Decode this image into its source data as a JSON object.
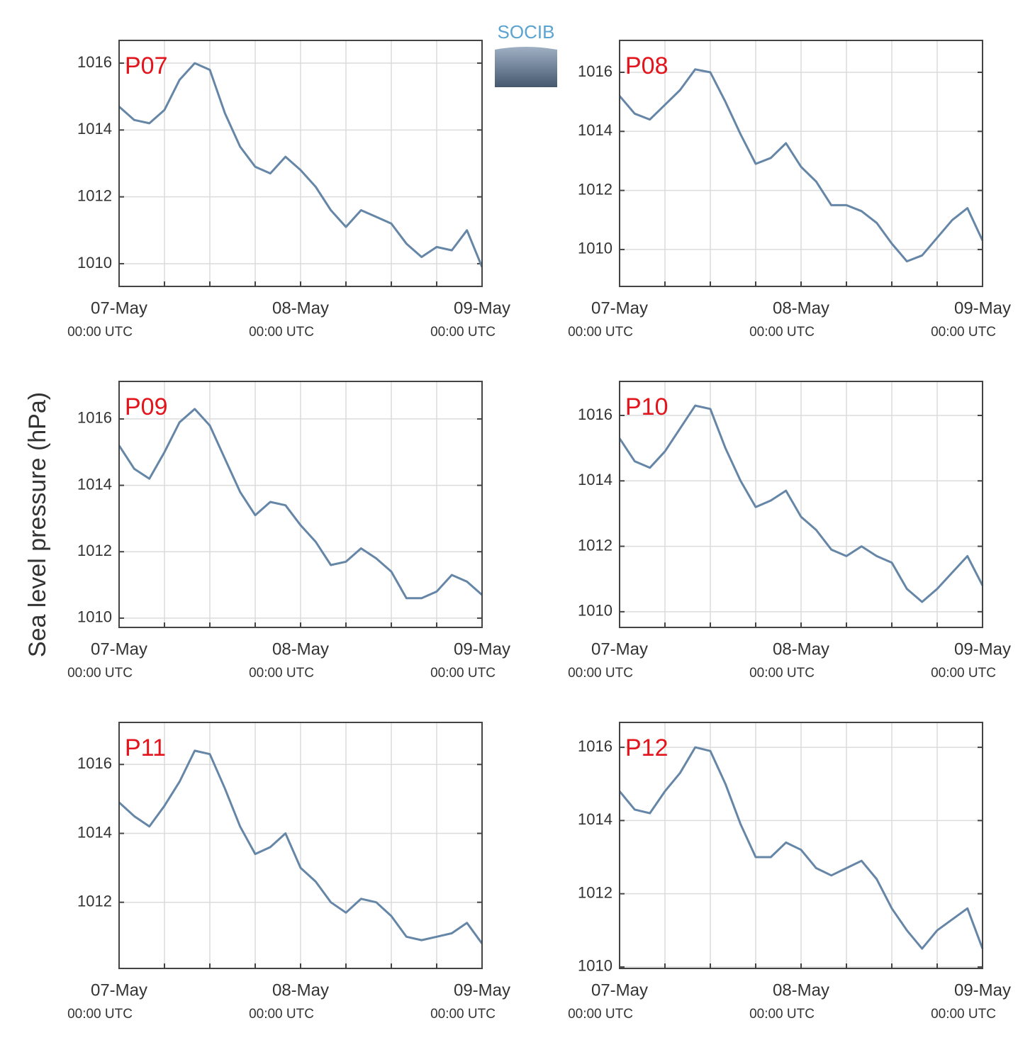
{
  "logo_text": "SOCIB",
  "ylabel": "Sea level pressure (hPa)",
  "chart_data": [
    {
      "type": "line",
      "title": "P07",
      "x": [
        0,
        2,
        4,
        6,
        8,
        10,
        12,
        14,
        16,
        18,
        20,
        22,
        24,
        26,
        28,
        30,
        32,
        34,
        36,
        38,
        40,
        42,
        44,
        46,
        48
      ],
      "series": [
        {
          "color": "#6586a6",
          "values": [
            1014.7,
            1014.3,
            1014.2,
            1014.6,
            1015.5,
            1016.0,
            1015.8,
            1014.5,
            1013.5,
            1012.9,
            1012.7,
            1013.2,
            1012.8,
            1012.3,
            1011.6,
            1011.1,
            1011.6,
            1011.4,
            1011.2,
            1010.6,
            1010.2,
            1010.5,
            1010.4,
            1011.0,
            1009.9
          ]
        }
      ],
      "xlim": [
        0,
        48
      ],
      "xticks": [
        {
          "value": 0,
          "label": "07-May",
          "sublabel": "00:00 UTC"
        },
        {
          "value": 6,
          "label": null
        },
        {
          "value": 12,
          "label": null
        },
        {
          "value": 18,
          "label": null
        },
        {
          "value": 24,
          "label": "08-May",
          "sublabel": "00:00 UTC"
        },
        {
          "value": 30,
          "label": null
        },
        {
          "value": 36,
          "label": null
        },
        {
          "value": 42,
          "label": null
        },
        {
          "value": 48,
          "label": "09-May",
          "sublabel": "00:00 UTC"
        }
      ],
      "ylim": [
        1009.32,
        1016.68
      ],
      "yticks": [
        1010,
        1012,
        1014,
        1016
      ],
      "grid": true
    },
    {
      "type": "line",
      "title": "P08",
      "x": [
        0,
        2,
        4,
        6,
        8,
        10,
        12,
        14,
        16,
        18,
        20,
        22,
        24,
        26,
        28,
        30,
        32,
        34,
        36,
        38,
        40,
        42,
        44,
        46,
        48
      ],
      "series": [
        {
          "color": "#6586a6",
          "values": [
            1015.2,
            1014.6,
            1014.4,
            1014.9,
            1015.4,
            1016.1,
            1016.0,
            1015.0,
            1013.9,
            1012.9,
            1013.1,
            1013.6,
            1012.8,
            1012.3,
            1011.5,
            1011.5,
            1011.3,
            1010.9,
            1010.2,
            1009.6,
            1009.8,
            1010.4,
            1011.0,
            1011.4,
            1010.3
          ]
        }
      ],
      "xlim": [
        0,
        48
      ],
      "xticks": [
        {
          "value": 0,
          "label": "07-May",
          "sublabel": "00:00 UTC"
        },
        {
          "value": 6,
          "label": null
        },
        {
          "value": 12,
          "label": null
        },
        {
          "value": 18,
          "label": null
        },
        {
          "value": 24,
          "label": "08-May",
          "sublabel": "00:00 UTC"
        },
        {
          "value": 30,
          "label": null
        },
        {
          "value": 36,
          "label": null
        },
        {
          "value": 42,
          "label": null
        },
        {
          "value": 48,
          "label": "09-May",
          "sublabel": "00:00 UTC"
        }
      ],
      "ylim": [
        1008.75,
        1017.08
      ],
      "yticks": [
        1010,
        1012,
        1014,
        1016
      ],
      "grid": true
    },
    {
      "type": "line",
      "title": "P09",
      "x": [
        0,
        2,
        4,
        6,
        8,
        10,
        12,
        14,
        16,
        18,
        20,
        22,
        24,
        26,
        28,
        30,
        32,
        34,
        36,
        38,
        40,
        42,
        44,
        46,
        48
      ],
      "series": [
        {
          "color": "#6586a6",
          "values": [
            1015.2,
            1014.5,
            1014.2,
            1015.0,
            1015.9,
            1016.3,
            1015.8,
            1014.8,
            1013.8,
            1013.1,
            1013.5,
            1013.4,
            1012.8,
            1012.3,
            1011.6,
            1011.7,
            1012.1,
            1011.8,
            1011.4,
            1010.6,
            1010.6,
            1010.8,
            1011.3,
            1011.1,
            1010.7
          ]
        }
      ],
      "xlim": [
        0,
        48
      ],
      "xticks": [
        {
          "value": 0,
          "label": "07-May",
          "sublabel": "00:00 UTC"
        },
        {
          "value": 6,
          "label": null
        },
        {
          "value": 12,
          "label": null
        },
        {
          "value": 18,
          "label": null
        },
        {
          "value": 24,
          "label": "08-May",
          "sublabel": "00:00 UTC"
        },
        {
          "value": 30,
          "label": null
        },
        {
          "value": 36,
          "label": null
        },
        {
          "value": 42,
          "label": null
        },
        {
          "value": 48,
          "label": "09-May",
          "sublabel": "00:00 UTC"
        }
      ],
      "ylim": [
        1009.72,
        1017.13
      ],
      "yticks": [
        1010,
        1012,
        1014,
        1016
      ],
      "grid": true
    },
    {
      "type": "line",
      "title": "P10",
      "x": [
        0,
        2,
        4,
        6,
        8,
        10,
        12,
        14,
        16,
        18,
        20,
        22,
        24,
        26,
        28,
        30,
        32,
        34,
        36,
        38,
        40,
        42,
        44,
        46,
        48
      ],
      "series": [
        {
          "color": "#6586a6",
          "values": [
            1015.3,
            1014.6,
            1014.4,
            1014.9,
            1015.6,
            1016.3,
            1016.2,
            1015.0,
            1014.0,
            1013.2,
            1013.4,
            1013.7,
            1012.9,
            1012.5,
            1011.9,
            1011.7,
            1012.0,
            1011.7,
            1011.5,
            1010.7,
            1010.3,
            1010.7,
            1011.2,
            1011.7,
            1010.8
          ]
        }
      ],
      "xlim": [
        0,
        48
      ],
      "xticks": [
        {
          "value": 0,
          "label": "07-May",
          "sublabel": "00:00 UTC"
        },
        {
          "value": 6,
          "label": null
        },
        {
          "value": 12,
          "label": null
        },
        {
          "value": 18,
          "label": null
        },
        {
          "value": 24,
          "label": "08-May",
          "sublabel": "00:00 UTC"
        },
        {
          "value": 30,
          "label": null
        },
        {
          "value": 36,
          "label": null
        },
        {
          "value": 42,
          "label": null
        },
        {
          "value": 48,
          "label": "09-May",
          "sublabel": "00:00 UTC"
        }
      ],
      "ylim": [
        1009.52,
        1017.04
      ],
      "yticks": [
        1010,
        1012,
        1014,
        1016
      ],
      "grid": true
    },
    {
      "type": "line",
      "title": "P11",
      "x": [
        0,
        2,
        4,
        6,
        8,
        10,
        12,
        14,
        16,
        18,
        20,
        22,
        24,
        26,
        28,
        30,
        32,
        34,
        36,
        38,
        40,
        42,
        44,
        46,
        48
      ],
      "series": [
        {
          "color": "#6586a6",
          "values": [
            1014.9,
            1014.5,
            1014.2,
            1014.8,
            1015.5,
            1016.4,
            1016.3,
            1015.3,
            1014.2,
            1013.4,
            1013.6,
            1014.0,
            1013.0,
            1012.6,
            1012.0,
            1011.7,
            1012.1,
            1012.0,
            1011.6,
            1011.0,
            1010.9,
            1011.0,
            1011.1,
            1011.4,
            1010.8
          ]
        }
      ],
      "xlim": [
        0,
        48
      ],
      "xticks": [
        {
          "value": 0,
          "label": "07-May",
          "sublabel": "00:00 UTC"
        },
        {
          "value": 6,
          "label": null
        },
        {
          "value": 12,
          "label": null
        },
        {
          "value": 18,
          "label": null
        },
        {
          "value": 24,
          "label": "08-May",
          "sublabel": "00:00 UTC"
        },
        {
          "value": 30,
          "label": null
        },
        {
          "value": 36,
          "label": null
        },
        {
          "value": 42,
          "label": null
        },
        {
          "value": 48,
          "label": "09-May",
          "sublabel": "00:00 UTC"
        }
      ],
      "ylim": [
        1010.08,
        1017.22
      ],
      "yticks": [
        1012,
        1014,
        1016
      ],
      "grid": true
    },
    {
      "type": "line",
      "title": "P12",
      "x": [
        0,
        2,
        4,
        6,
        8,
        10,
        12,
        14,
        16,
        18,
        20,
        22,
        24,
        26,
        28,
        30,
        32,
        34,
        36,
        38,
        40,
        42,
        44,
        46,
        48
      ],
      "series": [
        {
          "color": "#6586a6",
          "values": [
            1014.8,
            1014.3,
            1014.2,
            1014.8,
            1015.3,
            1016.0,
            1015.9,
            1015.0,
            1013.9,
            1013.0,
            1013.0,
            1013.4,
            1013.2,
            1012.7,
            1012.5,
            1012.7,
            1012.9,
            1012.4,
            1011.6,
            1011.0,
            1010.5,
            1011.0,
            1011.3,
            1011.6,
            1010.5
          ]
        }
      ],
      "xlim": [
        0,
        48
      ],
      "xticks": [
        {
          "value": 0,
          "label": "07-May",
          "sublabel": "00:00 UTC"
        },
        {
          "value": 6,
          "label": null
        },
        {
          "value": 12,
          "label": null
        },
        {
          "value": 18,
          "label": null
        },
        {
          "value": 24,
          "label": "08-May",
          "sublabel": "00:00 UTC"
        },
        {
          "value": 30,
          "label": null
        },
        {
          "value": 36,
          "label": null
        },
        {
          "value": 42,
          "label": null
        },
        {
          "value": 48,
          "label": "09-May",
          "sublabel": "00:00 UTC"
        }
      ],
      "ylim": [
        1009.96,
        1016.68
      ],
      "yticks": [
        1010,
        1012,
        1014,
        1016
      ],
      "grid": true
    }
  ]
}
